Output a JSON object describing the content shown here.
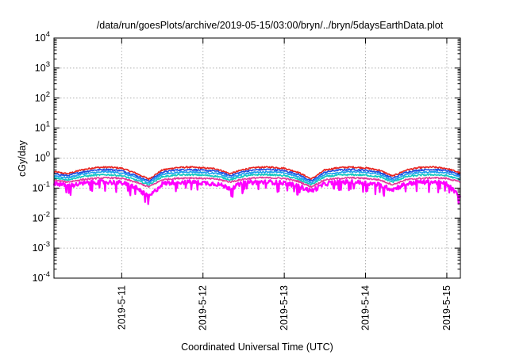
{
  "chart_data": {
    "type": "line",
    "title": "/data/run/goesPlots/archive/2019-05-15/03:00/bryn/../bryn/5daysEarthData.plot",
    "xlabel": "Coordinated Universal Time (UTC)",
    "ylabel": "cGy/day",
    "yscale": "log",
    "ylim": [
      0.0001,
      10000
    ],
    "xlim": [
      "2019-05-10T04:00",
      "2019-05-15T04:00"
    ],
    "grid": true,
    "legend": "none",
    "x_ticks": [
      {
        "value": "2019-05-11T00:00",
        "label": "2019-5-11"
      },
      {
        "value": "2019-05-12T00:00",
        "label": "2019-5-12"
      },
      {
        "value": "2019-05-13T00:00",
        "label": "2019-5-13"
      },
      {
        "value": "2019-05-14T00:00",
        "label": "2019-5-14"
      },
      {
        "value": "2019-05-15T00:00",
        "label": "2019-5-15"
      }
    ],
    "y_ticks": [
      {
        "value": 0.0001,
        "base": "10",
        "exp": "-4"
      },
      {
        "value": 0.001,
        "base": "10",
        "exp": "-3"
      },
      {
        "value": 0.01,
        "base": "10",
        "exp": "-2"
      },
      {
        "value": 0.1,
        "base": "10",
        "exp": "-1"
      },
      {
        "value": 1,
        "base": "10",
        "exp": "0"
      },
      {
        "value": 10,
        "base": "10",
        "exp": "1"
      },
      {
        "value": 100,
        "base": "10",
        "exp": "2"
      },
      {
        "value": 1000,
        "base": "10",
        "exp": "3"
      },
      {
        "value": 10000,
        "base": "10",
        "exp": "4"
      }
    ],
    "x": [
      "2019-05-10T04:00",
      "2019-05-10T08:00",
      "2019-05-10T12:00",
      "2019-05-10T16:00",
      "2019-05-10T20:00",
      "2019-05-11T00:00",
      "2019-05-11T04:00",
      "2019-05-11T08:00",
      "2019-05-11T12:00",
      "2019-05-11T16:00",
      "2019-05-11T20:00",
      "2019-05-12T00:00",
      "2019-05-12T04:00",
      "2019-05-12T08:00",
      "2019-05-12T12:00",
      "2019-05-12T16:00",
      "2019-05-12T20:00",
      "2019-05-13T00:00",
      "2019-05-13T04:00",
      "2019-05-13T08:00",
      "2019-05-13T12:00",
      "2019-05-13T16:00",
      "2019-05-13T20:00",
      "2019-05-14T00:00",
      "2019-05-14T04:00",
      "2019-05-14T08:00",
      "2019-05-14T12:00",
      "2019-05-14T16:00",
      "2019-05-14T20:00",
      "2019-05-15T00:00",
      "2019-05-15T04:00"
    ],
    "series": [
      {
        "color": "#e8231e",
        "values": [
          0.35,
          0.3,
          0.4,
          0.48,
          0.5,
          0.46,
          0.32,
          0.2,
          0.4,
          0.48,
          0.5,
          0.47,
          0.44,
          0.3,
          0.42,
          0.49,
          0.5,
          0.46,
          0.34,
          0.2,
          0.4,
          0.48,
          0.5,
          0.47,
          0.4,
          0.25,
          0.4,
          0.48,
          0.5,
          0.45,
          0.32
        ]
      },
      {
        "color": "#1f4fe0",
        "values": [
          0.3,
          0.26,
          0.34,
          0.4,
          0.42,
          0.38,
          0.27,
          0.17,
          0.34,
          0.4,
          0.42,
          0.39,
          0.37,
          0.26,
          0.36,
          0.41,
          0.42,
          0.38,
          0.29,
          0.17,
          0.34,
          0.4,
          0.42,
          0.39,
          0.34,
          0.21,
          0.34,
          0.4,
          0.42,
          0.38,
          0.27
        ]
      },
      {
        "color": "#1fa0f0",
        "values": [
          0.26,
          0.22,
          0.29,
          0.33,
          0.35,
          0.32,
          0.23,
          0.15,
          0.29,
          0.33,
          0.35,
          0.33,
          0.31,
          0.22,
          0.3,
          0.34,
          0.35,
          0.32,
          0.24,
          0.15,
          0.29,
          0.33,
          0.35,
          0.33,
          0.29,
          0.18,
          0.29,
          0.33,
          0.35,
          0.32,
          0.23
        ]
      },
      {
        "color": "#12c8c0",
        "values": [
          0.22,
          0.19,
          0.24,
          0.27,
          0.28,
          0.26,
          0.19,
          0.13,
          0.24,
          0.27,
          0.28,
          0.27,
          0.25,
          0.19,
          0.25,
          0.28,
          0.28,
          0.26,
          0.2,
          0.13,
          0.24,
          0.27,
          0.28,
          0.27,
          0.24,
          0.16,
          0.24,
          0.27,
          0.28,
          0.26,
          0.19
        ]
      },
      {
        "color": "#e23a9a",
        "values": [
          0.18,
          0.16,
          0.19,
          0.21,
          0.22,
          0.21,
          0.16,
          0.11,
          0.19,
          0.21,
          0.22,
          0.21,
          0.2,
          0.16,
          0.2,
          0.22,
          0.22,
          0.21,
          0.17,
          0.11,
          0.19,
          0.21,
          0.22,
          0.21,
          0.19,
          0.13,
          0.19,
          0.21,
          0.22,
          0.21,
          0.16
        ]
      },
      {
        "color": "#ff00ff",
        "values": [
          0.15,
          0.12,
          0.14,
          0.16,
          0.16,
          0.15,
          0.11,
          0.05,
          0.14,
          0.16,
          0.16,
          0.15,
          0.14,
          0.1,
          0.15,
          0.16,
          0.16,
          0.15,
          0.12,
          0.08,
          0.14,
          0.16,
          0.16,
          0.15,
          0.13,
          0.09,
          0.14,
          0.16,
          0.16,
          0.14,
          0.05
        ]
      }
    ]
  }
}
